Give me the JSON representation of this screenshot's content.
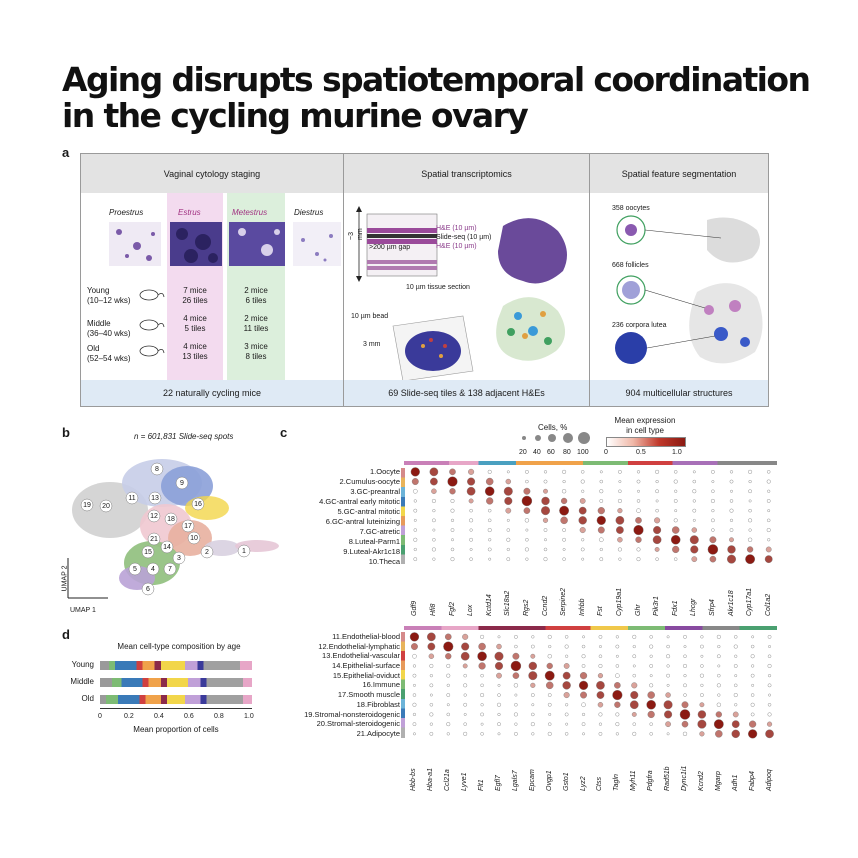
{
  "title": "Aging disrupts spatiotemporal coordination in the cycling murine ovary",
  "panel_a": {
    "label": "a",
    "sections": [
      {
        "header": "Vaginal cytology staging",
        "footer": "22 naturally cycling mice"
      },
      {
        "header": "Spatial transcriptomics",
        "footer": "69 Slide-seq tiles & 138 adjacent H&Es"
      },
      {
        "header": "Spatial feature segmentation",
        "footer": "904 multicellular structures"
      }
    ],
    "stages": [
      "Proestrus",
      "Estrus",
      "Metestrus",
      "Diestrus"
    ],
    "groups": [
      {
        "name": "Young",
        "ages": "(10–12 wks)",
        "estrus": "7 mice\n26 tiles",
        "metestrus": "2 mice\n6 tiles"
      },
      {
        "name": "Middle",
        "ages": "(36–40 wks)",
        "estrus": "4 mice\n5 tiles",
        "metestrus": "2 mice\n11 tiles"
      },
      {
        "name": "Old",
        "ages": "(52–54 wks)",
        "estrus": "4 mice\n13 tiles",
        "metestrus": "3 mice\n8 tiles"
      }
    ],
    "st_labels": {
      "depth": "~3 mm",
      "he_top": "H&E (10 µm)",
      "slideseq": "Slide-seq (10 µm)",
      "he_bottom": "H&E (10 µm)",
      "gap": ">200 µm gap",
      "tissue": "10 µm tissue section",
      "bead": "10 µm bead",
      "width": "3 mm"
    },
    "segmentation": [
      {
        "label": "358 oocytes"
      },
      {
        "label": "668 follicles"
      },
      {
        "label": "236 corpora lutea"
      }
    ]
  },
  "panel_b": {
    "label": "b",
    "n_label": "n = 601,831 Slide-seq spots",
    "axis_x": "UMAP 1",
    "axis_y": "UMAP 2",
    "cluster_ids": [
      "1",
      "2",
      "3",
      "4",
      "5",
      "6",
      "7",
      "8",
      "9",
      "10",
      "11",
      "12",
      "13",
      "14",
      "15",
      "16",
      "17",
      "18",
      "19",
      "20",
      "21"
    ]
  },
  "panel_c": {
    "label": "c",
    "size_legend_title": "Cells, %",
    "size_legend_values": [
      "20",
      "40",
      "60",
      "80",
      "100"
    ],
    "color_legend_title": "Mean expression\nin cell type",
    "color_legend_ticks": [
      "0",
      "0.5",
      "1.0"
    ],
    "top": {
      "rows": [
        "1.Oocyte",
        "2.Cumulus-oocyte",
        "3.GC-preantral",
        "4.GC-antral early mitotic",
        "5.GC-antral mitotic",
        "6.GC-antral luteinizing",
        "7.GC-atretic",
        "8.Luteal-Parm1",
        "9.Luteal-Akr1c18",
        "10.Theca"
      ],
      "genes": [
        "Gdf9",
        "Hfi8",
        "Fgf2",
        "Lox",
        "Kctd14",
        "Slc18a2",
        "Rgs2",
        "Ccnd2",
        "Serpine2",
        "Inhbb",
        "Fst",
        "Cyp19a1",
        "Ghr",
        "Pik3r1",
        "Fdx1",
        "Lhcgr",
        "Sfrp4",
        "Akr1c18",
        "Cyp17a1",
        "Col1a2"
      ]
    },
    "bottom": {
      "rows": [
        "11.Endothelial-blood",
        "12.Endothelial-lymphatic",
        "13.Endothelial-vascular",
        "14.Epithelial-surface",
        "15.Epithelial-oviduct",
        "16.Immune",
        "17.Smooth muscle",
        "18.Fibroblast",
        "19.Stromal-nonsteroidogenic",
        "20.Stromal-steroidogenic",
        "21.Adipocyte"
      ],
      "genes": [
        "Hbb-bs",
        "Hba-a1",
        "Ccl21a",
        "Lyve1",
        "Flt1",
        "Egfl7",
        "Lgals7",
        "Epcam",
        "Ovgp1",
        "Gsto1",
        "Lyz2",
        "Ctss",
        "Tagln",
        "Myh11",
        "Pdgfra",
        "Rad51b",
        "Dync1i1",
        "Kcnd2",
        "Mgarp",
        "Adh1",
        "Fabp4",
        "Adipoq"
      ]
    }
  },
  "panel_d": {
    "label": "d",
    "title": "Mean cell-type composition by age",
    "xlabel": "Mean proportion of cells",
    "ticks": [
      "0",
      "0.2",
      "0.4",
      "0.6",
      "0.8",
      "1.0"
    ],
    "groups": [
      "Young",
      "Middle",
      "Old"
    ]
  },
  "colors": {
    "estrus": "#f3dbef",
    "metestrus": "#dcefdc",
    "header": "#e3e3e3",
    "footer": "#dfeaf5",
    "dot_high": "#8b1a12"
  }
}
